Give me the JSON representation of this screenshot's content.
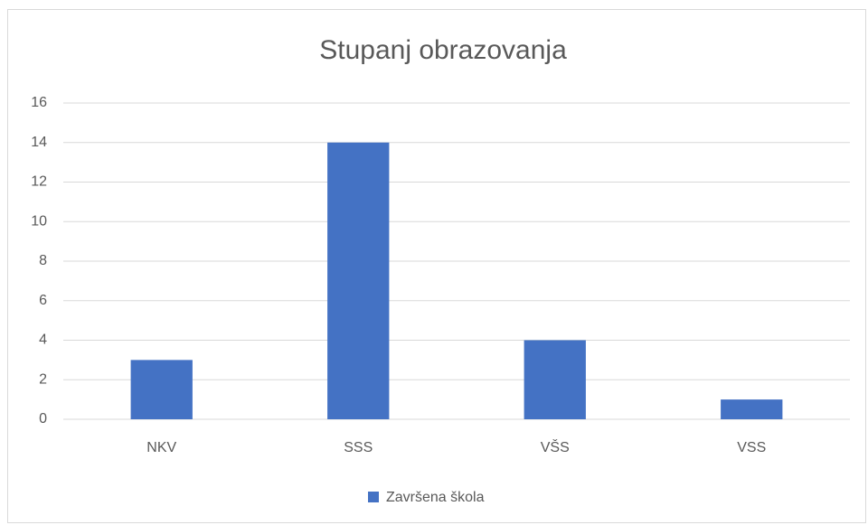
{
  "chart_data": {
    "type": "bar",
    "title": "Stupanj obrazovanja",
    "categories": [
      "NKV",
      "SSS",
      "VŠS",
      "VSS"
    ],
    "series": [
      {
        "name": "Završena škola",
        "color": "#4472c4",
        "values": [
          3,
          14,
          4,
          1
        ]
      }
    ],
    "ylim": [
      0,
      16
    ],
    "yticks": [
      0,
      2,
      4,
      6,
      8,
      10,
      12,
      14,
      16
    ],
    "grid": true,
    "legend": "bottom"
  }
}
